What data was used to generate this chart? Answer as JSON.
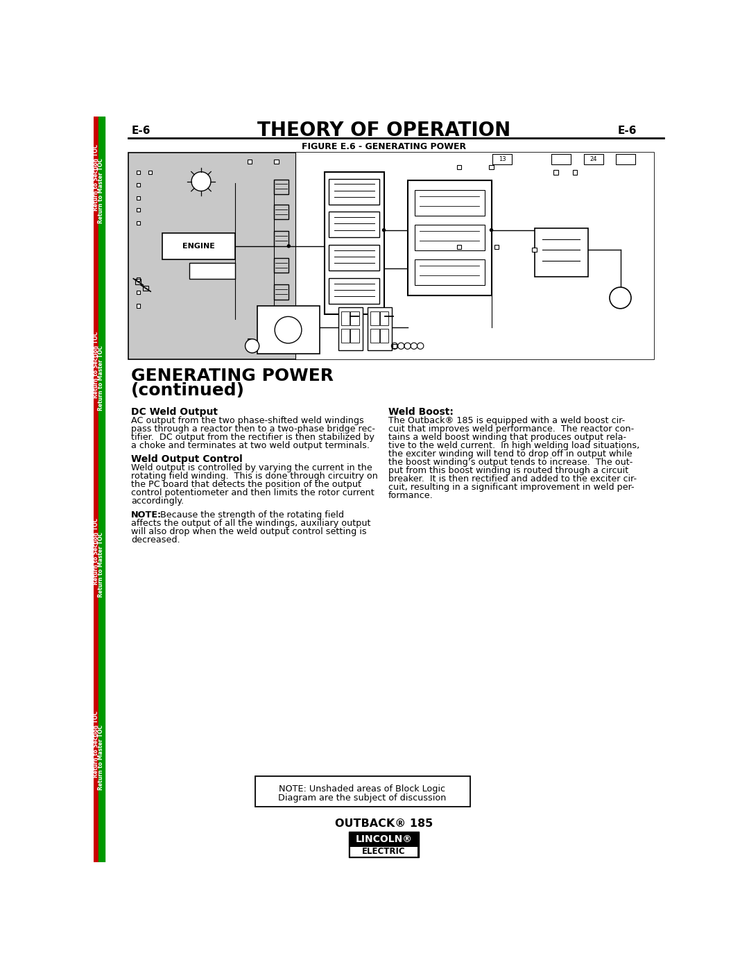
{
  "page_label_left": "E-6",
  "page_label_right": "E-6",
  "main_title": "THEORY OF OPERATION",
  "figure_title": "FIGURE E.6 - GENERATING POWER",
  "section_title_line1": "GENERATING POWER",
  "section_title_line2": "(continued)",
  "dc_weld_title": "DC Weld Output",
  "weld_control_title": "Weld Output Control",
  "note_label": "NOTE:",
  "note_rest": "  Because the strength of the rotating field",
  "note_line2": "affects the output of all the windings, auxiliary output",
  "note_line3": "will also drop when the weld output control setting is",
  "note_line4": "decreased.",
  "weld_boost_title": "Weld Boost:",
  "footer_text": "OUTBACK® 185",
  "bg_color": "#ffffff",
  "diagram_bg": "#c8c8c8",
  "sidebar_red": "#cc0000",
  "sidebar_green": "#009900",
  "engine_label": "ENGINE",
  "dc_weld_lines": [
    "AC output from the two phase-shifted weld windings",
    "pass through a reactor then to a two-phase bridge rec-",
    "tifier.  DC output from the rectifier is then stabilized by",
    "a choke and terminates at two weld output terminals."
  ],
  "weld_control_lines": [
    "Weld output is controlled by varying the current in the",
    "rotating field winding.  This is done through circuitry on",
    "the PC board that detects the position of the output",
    "control potentiometer and then limits the rotor current",
    "accordingly."
  ],
  "weld_boost_lines": [
    "The Outback® 185 is equipped with a weld boost cir-",
    "cuit that improves weld performance.  The reactor con-",
    "tains a weld boost winding that produces output rela-",
    "tive to the weld current.  In high welding load situations,",
    "the exciter winding will tend to drop off in output while",
    "the boost winding’s output tends to increase.  The out-",
    "put from this boost winding is routed through a circuit",
    "breaker.  It is then rectified and added to the exciter cir-",
    "cuit, resulting in a significant improvement in weld per-",
    "formance."
  ],
  "note_box_line1": "NOTE: Unshaded areas of Block Logic",
  "note_box_line2": "Diagram are the subject of discussion"
}
